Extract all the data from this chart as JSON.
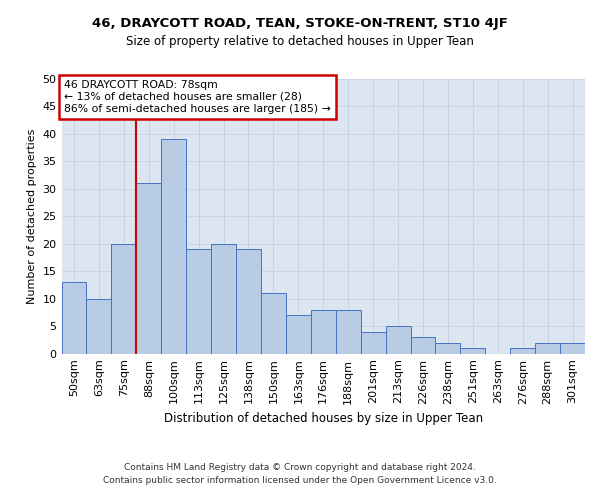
{
  "title1": "46, DRAYCOTT ROAD, TEAN, STOKE-ON-TRENT, ST10 4JF",
  "title2": "Size of property relative to detached houses in Upper Tean",
  "xlabel": "Distribution of detached houses by size in Upper Tean",
  "ylabel": "Number of detached properties",
  "footnote1": "Contains HM Land Registry data © Crown copyright and database right 2024.",
  "footnote2": "Contains public sector information licensed under the Open Government Licence v3.0.",
  "bar_labels": [
    "50sqm",
    "63sqm",
    "75sqm",
    "88sqm",
    "100sqm",
    "113sqm",
    "125sqm",
    "138sqm",
    "150sqm",
    "163sqm",
    "176sqm",
    "188sqm",
    "201sqm",
    "213sqm",
    "226sqm",
    "238sqm",
    "251sqm",
    "263sqm",
    "276sqm",
    "288sqm",
    "301sqm"
  ],
  "bar_values": [
    13,
    10,
    20,
    31,
    39,
    19,
    20,
    19,
    11,
    7,
    8,
    8,
    4,
    5,
    3,
    2,
    1,
    0,
    1,
    2,
    2
  ],
  "bar_color": "#b8cce4",
  "bar_edge_color": "#4472c4",
  "grid_color": "#c8d4e4",
  "background_color": "#dce6f1",
  "annotation_line1": "46 DRAYCOTT ROAD: 78sqm",
  "annotation_line2": "← 13% of detached houses are smaller (28)",
  "annotation_line3": "86% of semi-detached houses are larger (185) →",
  "annotation_box_color": "#ffffff",
  "annotation_box_edge": "#cc0000",
  "vline_color": "#cc0000",
  "vline_x": 2.5,
  "ylim": [
    0,
    50
  ],
  "yticks": [
    0,
    5,
    10,
    15,
    20,
    25,
    30,
    35,
    40,
    45,
    50
  ],
  "title1_fontsize": 9.5,
  "title2_fontsize": 8.5,
  "xlabel_fontsize": 8.5,
  "ylabel_fontsize": 8.0,
  "tick_fontsize": 8.0,
  "footnote_fontsize": 6.5
}
